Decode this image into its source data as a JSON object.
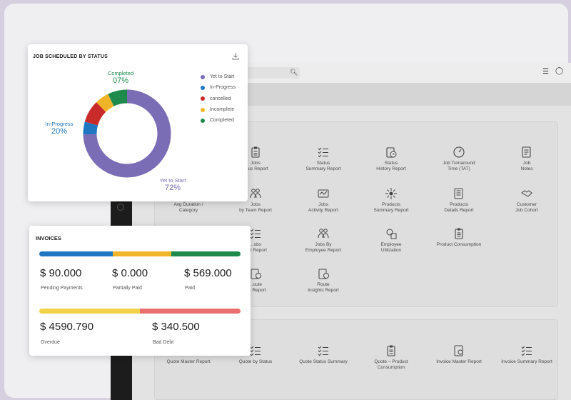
{
  "status_card": {
    "title": "JOB SCHEDULED BY STATUS",
    "download_icon": "download-icon",
    "segments": [
      {
        "name": "Yet to Start",
        "percent": 72,
        "color": "#7b6db5"
      },
      {
        "name": "In-Progress",
        "percent": 20,
        "color": "#1f77c2"
      },
      {
        "name": "cancelled",
        "percent": 0,
        "color": "#c92a2a"
      },
      {
        "name": "Incomplete",
        "percent": 0,
        "color": "#f0b428"
      },
      {
        "name": "Completed",
        "percent": 7,
        "color": "#1e8a4c"
      }
    ],
    "labels": {
      "completed_name": "Completed",
      "completed_value": "07%",
      "inprogress_name": "In-Progress",
      "inprogress_value": "20%",
      "yet_name": "Yet to Start",
      "yet_value": "72%"
    },
    "legend": [
      "Yet to Start",
      "In-Progress",
      "cancelled",
      "Incomplete",
      "Completed"
    ]
  },
  "invoices": {
    "title": "INVOICES",
    "pending_amount": "$ 90.000",
    "pending_label": "Pending Payments",
    "partial_amount": "$ 0.000",
    "partial_label": "Partially Paid",
    "paid_amount": "$ 569.000",
    "paid_label": "Paid",
    "overdue_amount": "$ 4590.790",
    "overdue_label": "Overdue",
    "baddebt_amount": "$ 340.500",
    "baddebt_label": "Bad Debt",
    "bar1_colors": [
      "#1f77c2",
      "#f0b428",
      "#1e8a4c"
    ],
    "bar2_colors": [
      "#f2d24a",
      "#e96f6f"
    ]
  },
  "background": {
    "tiles": {
      "r1c1": [
        "Jobs",
        "...tus Report"
      ],
      "r1c2": [
        "Status",
        "Summary Report"
      ],
      "r1c3": [
        "Status",
        "History Report"
      ],
      "r1c4": [
        "Job Turnaround",
        "Time (TAT)"
      ],
      "r1c5": [
        "Job",
        "Notes"
      ],
      "r2c0": [
        "Avg Duration /",
        "Category"
      ],
      "r2c1": [
        "Jobs",
        "by Team Report"
      ],
      "r2c2": [
        "Jobs",
        "Activity Report"
      ],
      "r2c3": [
        "Products",
        "Summary Report"
      ],
      "r2c4": [
        "Products",
        "Details Report"
      ],
      "r2c5": [
        "Customer",
        "Job Cohort"
      ],
      "r3c1": [
        "...obs",
        "...st Report"
      ],
      "r3c2": [
        "Jobs By",
        "Employee Report"
      ],
      "r3c3": [
        "Employee",
        "Utilization"
      ],
      "r3c4": [
        "Product Consumption",
        ""
      ],
      "r4c1": [
        "...oute",
        "...s Report"
      ],
      "r4c2": [
        "Route",
        "Insights Report"
      ],
      "p2c0": [
        "Quote Master Report",
        ""
      ],
      "p2c1": [
        "Quote by Status",
        ""
      ],
      "p2c2": [
        "Quote Status Summary",
        ""
      ],
      "p2c3": [
        "Quote – Product",
        "Consumption"
      ],
      "p2c4": [
        "Invoice Master Report",
        ""
      ],
      "p2c5": [
        "Invoice Summary Report",
        ""
      ]
    }
  }
}
